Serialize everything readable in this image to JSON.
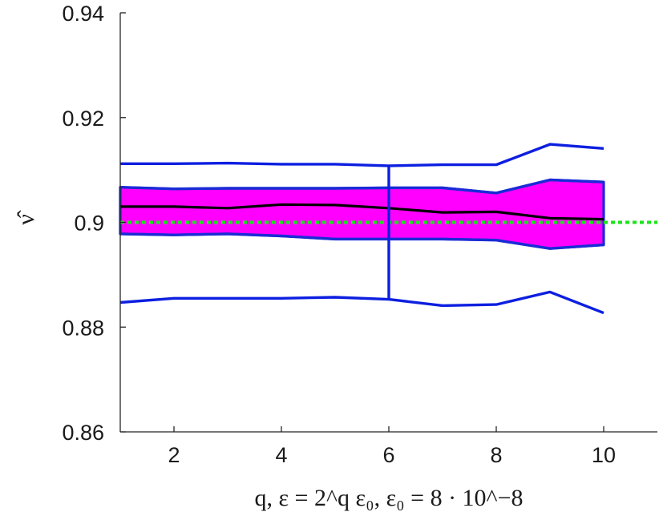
{
  "chart_data": {
    "type": "line",
    "xlabel": "q, ε = 2^q ε₀, ε₀ = 8 · 10^−8",
    "ylabel": "ν̂",
    "xlim": [
      1,
      11
    ],
    "ylim": [
      0.86,
      0.94
    ],
    "xticks": [
      2,
      4,
      6,
      8,
      10
    ],
    "yticks": [
      0.86,
      0.88,
      0.9,
      0.92,
      0.94
    ],
    "xtick_labels": [
      "2",
      "4",
      "6",
      "8",
      "10"
    ],
    "ytick_labels": [
      "0.86",
      "0.88",
      "0.9",
      "0.92",
      "0.94"
    ],
    "grid": false,
    "x": [
      1,
      2,
      3,
      4,
      5,
      6,
      7,
      8,
      9,
      10
    ],
    "series": [
      {
        "role": "upper-whisker",
        "color": "#0d1fe0",
        "values": [
          0.9112,
          0.9112,
          0.9113,
          0.9111,
          0.9111,
          0.9108,
          0.911,
          0.911,
          0.9149,
          0.9141
        ]
      },
      {
        "role": "box-upper",
        "color": "#1a2bd6",
        "values": [
          0.9067,
          0.9064,
          0.9065,
          0.9065,
          0.9065,
          0.9066,
          0.9066,
          0.9056,
          0.9081,
          0.9077
        ]
      },
      {
        "role": "median",
        "color": "#000000",
        "values": [
          0.903,
          0.903,
          0.9027,
          0.9034,
          0.9033,
          0.9027,
          0.9019,
          0.902,
          0.9008,
          0.9006
        ]
      },
      {
        "role": "box-lower",
        "color": "#1a2bd6",
        "values": [
          0.8978,
          0.8976,
          0.8978,
          0.8974,
          0.8968,
          0.8968,
          0.8968,
          0.8966,
          0.895,
          0.8957
        ]
      },
      {
        "role": "lower-whisker",
        "color": "#0d1fe0",
        "values": [
          0.8847,
          0.8855,
          0.8855,
          0.8855,
          0.8857,
          0.8853,
          0.8841,
          0.8843,
          0.8867,
          0.8827
        ]
      }
    ],
    "reference_line": {
      "y": 0.9,
      "color": "#19e619",
      "style": "dotted"
    },
    "vertical_segment": {
      "x": 6,
      "from": 0.8853,
      "to": 0.9108,
      "color": "#0d1fe0"
    },
    "band_fill_color": "#ff00ff"
  }
}
